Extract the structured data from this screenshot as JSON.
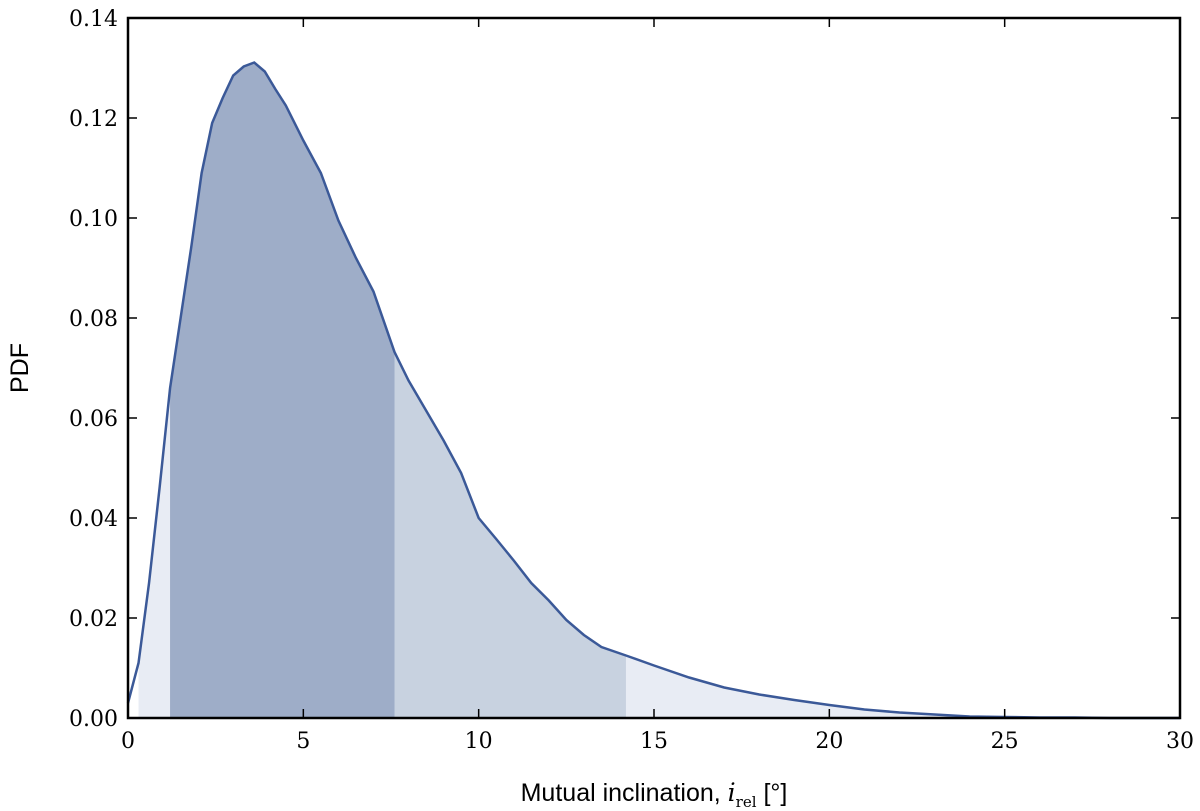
{
  "chart_data": {
    "type": "area",
    "title": "",
    "xlabel_main": "Mutual inclination, ",
    "xlabel_symbol": "i",
    "xlabel_subscript": "rel",
    "xlabel_unit": " [°]",
    "ylabel": "PDF",
    "xlim": [
      0,
      30
    ],
    "ylim": [
      0,
      0.14
    ],
    "xticks": [
      0,
      5,
      10,
      15,
      20,
      25,
      30
    ],
    "xtick_labels": [
      "0",
      "5",
      "10",
      "15",
      "20",
      "25",
      "30"
    ],
    "yticks": [
      0,
      0.02,
      0.04,
      0.06,
      0.08,
      0.1,
      0.12,
      0.14
    ],
    "ytick_labels": [
      "0.00",
      "0.02",
      "0.04",
      "0.06",
      "0.08",
      "0.10",
      "0.12",
      "0.14"
    ],
    "grid": false,
    "line_color": "#3b5998",
    "shade_colors": [
      "#e8ecf4",
      "#c8d2e0",
      "#9eadc8"
    ],
    "credible_regions": [
      {
        "level": "outer",
        "x_range": [
          0.3,
          30
        ],
        "color_index": 0
      },
      {
        "level": "middle",
        "x_range": [
          1.2,
          14.2
        ],
        "color_index": 1
      },
      {
        "level": "inner",
        "x_range": [
          1.2,
          7.6
        ],
        "color_index": 2
      }
    ],
    "series": [
      {
        "x": [
          0,
          0.3,
          0.6,
          0.9,
          1.2,
          1.5,
          1.8,
          2.1,
          2.4,
          2.7,
          3.0,
          3.3,
          3.6,
          3.9,
          4.2,
          4.5,
          5.0,
          5.5,
          6.0,
          6.5,
          7.0,
          7.6,
          8.0,
          8.5,
          9.0,
          9.5,
          10.0,
          10.5,
          11.0,
          11.5,
          12.0,
          12.5,
          13.0,
          13.5,
          14.2,
          15.0,
          16.0,
          17.0,
          18.0,
          19.0,
          20.0,
          21.0,
          22.0,
          23.0,
          24.0,
          25.0,
          26.0,
          27.0,
          28.0,
          29.0,
          30.0
        ],
        "y": [
          0.003,
          0.011,
          0.027,
          0.046,
          0.066,
          0.08,
          0.094,
          0.109,
          0.119,
          0.124,
          0.1285,
          0.1303,
          0.1311,
          0.1293,
          0.1258,
          0.1225,
          0.1155,
          0.109,
          0.0995,
          0.092,
          0.0853,
          0.0732,
          0.0675,
          0.0615,
          0.0555,
          0.049,
          0.04,
          0.0358,
          0.0315,
          0.027,
          0.0235,
          0.0196,
          0.0166,
          0.0142,
          0.0125,
          0.0105,
          0.0081,
          0.0061,
          0.0047,
          0.0036,
          0.0026,
          0.0017,
          0.0011,
          0.0007,
          0.0003,
          0.0002,
          0.0001,
          0.0001,
          0.0,
          0.0,
          0.0
        ]
      }
    ]
  }
}
